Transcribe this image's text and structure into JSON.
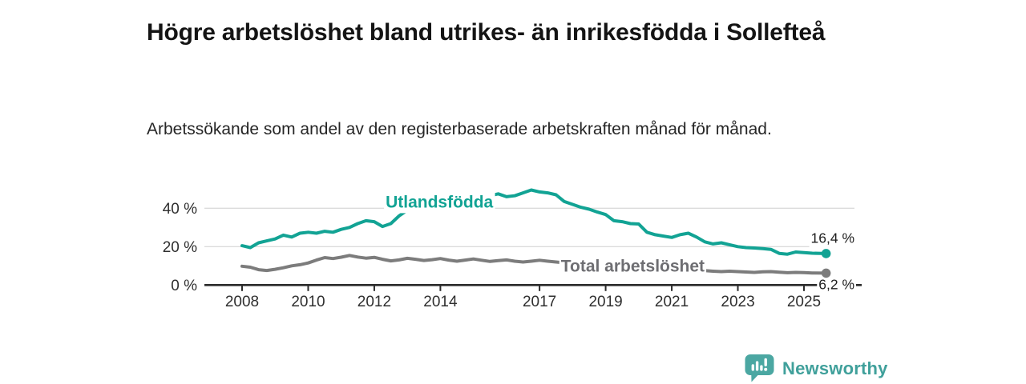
{
  "header": {
    "title": "Högre arbetslöshet bland utrikes- än inrikesfödda i Sollefteå",
    "subtitle": "Arbetssökande som andel av den registerbaserade arbetskraften månad för månad."
  },
  "footer": {
    "brand": "Newsworthy"
  },
  "colors": {
    "utlandsfodda": "#12A394",
    "total": "#7C7C7C",
    "total_label": "#6E6E72",
    "axis": "#2B2B2B",
    "grid": "#DBDBDB",
    "tick_text": "#2F2F2F",
    "end_label_text": "#1F1F1F",
    "logo_teal": "#4BA7A2"
  },
  "chart_data": {
    "type": "line",
    "title": "Högre arbetslöshet bland utrikes- än inrikesfödda i Sollefteå",
    "subtitle": "Arbetssökande som andel av den registerbaserade arbetskraften månad för månad.",
    "xlabel": "",
    "ylabel": "",
    "ylim": [
      0,
      52
    ],
    "xlim": [
      2007.85,
      2026.4
    ],
    "grid": "horizontal",
    "legend_position": "inline-labels",
    "yticks": [
      {
        "value": 0,
        "label": "0 %"
      },
      {
        "value": 20,
        "label": "20 %"
      },
      {
        "value": 40,
        "label": "40 %"
      }
    ],
    "xticks": [
      {
        "value": 2008,
        "label": "2008"
      },
      {
        "value": 2010,
        "label": "2010"
      },
      {
        "value": 2012,
        "label": "2012"
      },
      {
        "value": 2014,
        "label": "2014"
      },
      {
        "value": 2017,
        "label": "2017"
      },
      {
        "value": 2019,
        "label": "2019"
      },
      {
        "value": 2021,
        "label": "2021"
      },
      {
        "value": 2023,
        "label": "2023"
      },
      {
        "value": 2025,
        "label": "2025"
      }
    ],
    "series": [
      {
        "name": "Utlandsfödda",
        "color": "#12A394",
        "label_color": "#12A394",
        "label_pos": [
          2013.97,
          43.5
        ],
        "end_label": "16,4 %",
        "end_value": 16.4,
        "points": [
          [
            2008.0,
            20.5
          ],
          [
            2008.25,
            19.5
          ],
          [
            2008.5,
            22.0
          ],
          [
            2008.75,
            23.0
          ],
          [
            2009.0,
            24.0
          ],
          [
            2009.25,
            26.0
          ],
          [
            2009.5,
            25.0
          ],
          [
            2009.75,
            27.0
          ],
          [
            2010.0,
            27.5
          ],
          [
            2010.25,
            27.0
          ],
          [
            2010.5,
            28.0
          ],
          [
            2010.75,
            27.5
          ],
          [
            2011.0,
            29.0
          ],
          [
            2011.25,
            30.0
          ],
          [
            2011.5,
            32.0
          ],
          [
            2011.75,
            33.5
          ],
          [
            2012.0,
            33.0
          ],
          [
            2012.25,
            30.5
          ],
          [
            2012.5,
            32.0
          ],
          [
            2012.75,
            36.0
          ],
          [
            2013.0,
            39.0
          ],
          [
            2013.25,
            38.5
          ],
          [
            2013.5,
            40.0
          ],
          [
            2013.75,
            40.5
          ],
          [
            2014.0,
            41.0
          ],
          [
            2014.25,
            42.0
          ],
          [
            2014.5,
            42.5
          ],
          [
            2014.75,
            43.0
          ],
          [
            2015.0,
            43.5
          ],
          [
            2015.25,
            44.5
          ],
          [
            2015.5,
            46.5
          ],
          [
            2015.75,
            47.5
          ],
          [
            2016.0,
            46.0
          ],
          [
            2016.25,
            46.5
          ],
          [
            2016.5,
            48.0
          ],
          [
            2016.75,
            49.5
          ],
          [
            2017.0,
            48.5
          ],
          [
            2017.25,
            48.0
          ],
          [
            2017.5,
            47.0
          ],
          [
            2017.75,
            43.5
          ],
          [
            2018.0,
            42.0
          ],
          [
            2018.25,
            40.5
          ],
          [
            2018.5,
            39.5
          ],
          [
            2018.75,
            38.0
          ],
          [
            2019.0,
            36.7
          ],
          [
            2019.25,
            33.5
          ],
          [
            2019.5,
            33.0
          ],
          [
            2019.75,
            32.0
          ],
          [
            2020.0,
            31.8
          ],
          [
            2020.25,
            27.5
          ],
          [
            2020.5,
            26.2
          ],
          [
            2020.75,
            25.5
          ],
          [
            2021.0,
            24.8
          ],
          [
            2021.25,
            26.2
          ],
          [
            2021.5,
            27.0
          ],
          [
            2021.75,
            25.0
          ],
          [
            2022.0,
            22.5
          ],
          [
            2022.25,
            21.4
          ],
          [
            2022.5,
            22.0
          ],
          [
            2022.75,
            21.0
          ],
          [
            2023.0,
            20.0
          ],
          [
            2023.25,
            19.5
          ],
          [
            2023.5,
            19.3
          ],
          [
            2023.75,
            19.0
          ],
          [
            2024.0,
            18.6
          ],
          [
            2024.25,
            16.5
          ],
          [
            2024.5,
            16.1
          ],
          [
            2024.75,
            17.2
          ],
          [
            2025.0,
            16.9
          ],
          [
            2025.25,
            16.6
          ],
          [
            2025.67,
            16.4
          ]
        ]
      },
      {
        "name": "Total arbetslöshet",
        "color": "#7C7C7C",
        "label_color": "#6E6E72",
        "label_pos": [
          2019.82,
          10.1
        ],
        "end_label": "6,2 %",
        "end_value": 6.2,
        "points": [
          [
            2008.0,
            9.8
          ],
          [
            2008.25,
            9.3
          ],
          [
            2008.5,
            8.0
          ],
          [
            2008.75,
            7.6
          ],
          [
            2009.0,
            8.2
          ],
          [
            2009.25,
            9.0
          ],
          [
            2009.5,
            10.0
          ],
          [
            2009.75,
            10.6
          ],
          [
            2010.0,
            11.5
          ],
          [
            2010.25,
            13.0
          ],
          [
            2010.5,
            14.3
          ],
          [
            2010.75,
            13.8
          ],
          [
            2011.0,
            14.5
          ],
          [
            2011.25,
            15.4
          ],
          [
            2011.5,
            14.6
          ],
          [
            2011.75,
            14.0
          ],
          [
            2012.0,
            14.4
          ],
          [
            2012.25,
            13.4
          ],
          [
            2012.5,
            12.6
          ],
          [
            2012.75,
            13.1
          ],
          [
            2013.0,
            13.9
          ],
          [
            2013.25,
            13.4
          ],
          [
            2013.5,
            12.8
          ],
          [
            2013.75,
            13.2
          ],
          [
            2014.0,
            13.8
          ],
          [
            2014.25,
            13.0
          ],
          [
            2014.5,
            12.4
          ],
          [
            2014.75,
            13.0
          ],
          [
            2015.0,
            13.6
          ],
          [
            2015.25,
            12.9
          ],
          [
            2015.5,
            12.3
          ],
          [
            2015.75,
            12.7
          ],
          [
            2016.0,
            13.1
          ],
          [
            2016.25,
            12.4
          ],
          [
            2016.5,
            12.0
          ],
          [
            2016.75,
            12.4
          ],
          [
            2017.0,
            12.9
          ],
          [
            2017.25,
            12.4
          ],
          [
            2017.5,
            12.0
          ],
          [
            2017.75,
            11.6
          ],
          [
            2018.0,
            11.2
          ],
          [
            2018.25,
            10.8
          ],
          [
            2018.5,
            10.4
          ],
          [
            2018.75,
            10.1
          ],
          [
            2019.0,
            9.9
          ],
          [
            2019.25,
            9.6
          ],
          [
            2019.5,
            9.3
          ],
          [
            2019.75,
            9.1
          ],
          [
            2020.0,
            9.4
          ],
          [
            2020.25,
            9.7
          ],
          [
            2020.5,
            9.4
          ],
          [
            2020.75,
            9.0
          ],
          [
            2021.0,
            8.6
          ],
          [
            2021.25,
            8.3
          ],
          [
            2021.5,
            8.0
          ],
          [
            2021.75,
            7.7
          ],
          [
            2022.0,
            7.5
          ],
          [
            2022.25,
            7.2
          ],
          [
            2022.5,
            7.0
          ],
          [
            2022.75,
            7.2
          ],
          [
            2023.0,
            7.0
          ],
          [
            2023.25,
            6.8
          ],
          [
            2023.5,
            6.6
          ],
          [
            2023.75,
            6.9
          ],
          [
            2024.0,
            7.0
          ],
          [
            2024.25,
            6.7
          ],
          [
            2024.5,
            6.4
          ],
          [
            2024.75,
            6.6
          ],
          [
            2025.0,
            6.5
          ],
          [
            2025.25,
            6.3
          ],
          [
            2025.67,
            6.2
          ]
        ]
      }
    ]
  }
}
